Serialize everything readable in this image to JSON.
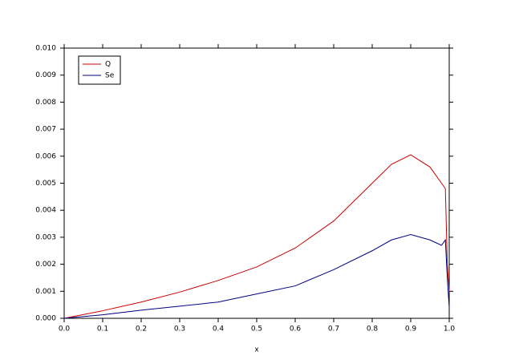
{
  "chart_data": {
    "type": "line",
    "x_label": "x",
    "x": [
      0,
      0.1,
      0.2,
      0.3,
      0.4,
      0.5,
      0.6,
      0.7,
      0.8,
      0.85,
      0.9,
      0.95,
      0.98,
      0.99,
      0.995,
      1.0
    ],
    "series": [
      {
        "name": "Q",
        "color": "#cc0000",
        "values": [
          0,
          0.00028,
          0.0006,
          0.00097,
          0.0014,
          0.0019,
          0.0026,
          0.0036,
          0.005,
          0.0057,
          0.00605,
          0.0056,
          0.005,
          0.0048,
          0.002,
          0.001
        ]
      },
      {
        "name": "Se",
        "color": "#000080",
        "values": [
          0,
          0.00013,
          0.0003,
          0.00045,
          0.0006,
          0.0009,
          0.0012,
          0.0018,
          0.0025,
          0.0029,
          0.0031,
          0.0029,
          0.0027,
          0.0029,
          0.0015,
          0.0004
        ]
      }
    ],
    "xlim": [
      0,
      1
    ],
    "xticks": [
      {
        "value": 0,
        "label": "0.0"
      },
      {
        "value": 0.1,
        "label": "0.1"
      },
      {
        "value": 0.2,
        "label": "0.2"
      },
      {
        "value": 0.3,
        "label": "0.3"
      },
      {
        "value": 0.4,
        "label": "0.4"
      },
      {
        "value": 0.5,
        "label": "0.5"
      },
      {
        "value": 0.6,
        "label": "0.6"
      },
      {
        "value": 0.7,
        "label": "0.7"
      },
      {
        "value": 0.8,
        "label": "0.8"
      },
      {
        "value": 0.9,
        "label": "0.9"
      },
      {
        "value": 1,
        "label": "1.0"
      }
    ],
    "ylim": [
      0,
      0.01
    ],
    "yticks": [
      {
        "value": 0,
        "label": "0.000"
      },
      {
        "value": 0.001,
        "label": "0.001"
      },
      {
        "value": 0.002,
        "label": "0.002"
      },
      {
        "value": 0.003,
        "label": "0.003"
      },
      {
        "value": 0.004,
        "label": "0.004"
      },
      {
        "value": 0.005,
        "label": "0.005"
      },
      {
        "value": 0.006,
        "label": "0.006"
      },
      {
        "value": 0.007,
        "label": "0.007"
      },
      {
        "value": 0.008,
        "label": "0.008"
      },
      {
        "value": 0.009,
        "label": "0.009"
      },
      {
        "value": 0.01,
        "label": "0.010"
      }
    ],
    "legend": "upper-left"
  }
}
